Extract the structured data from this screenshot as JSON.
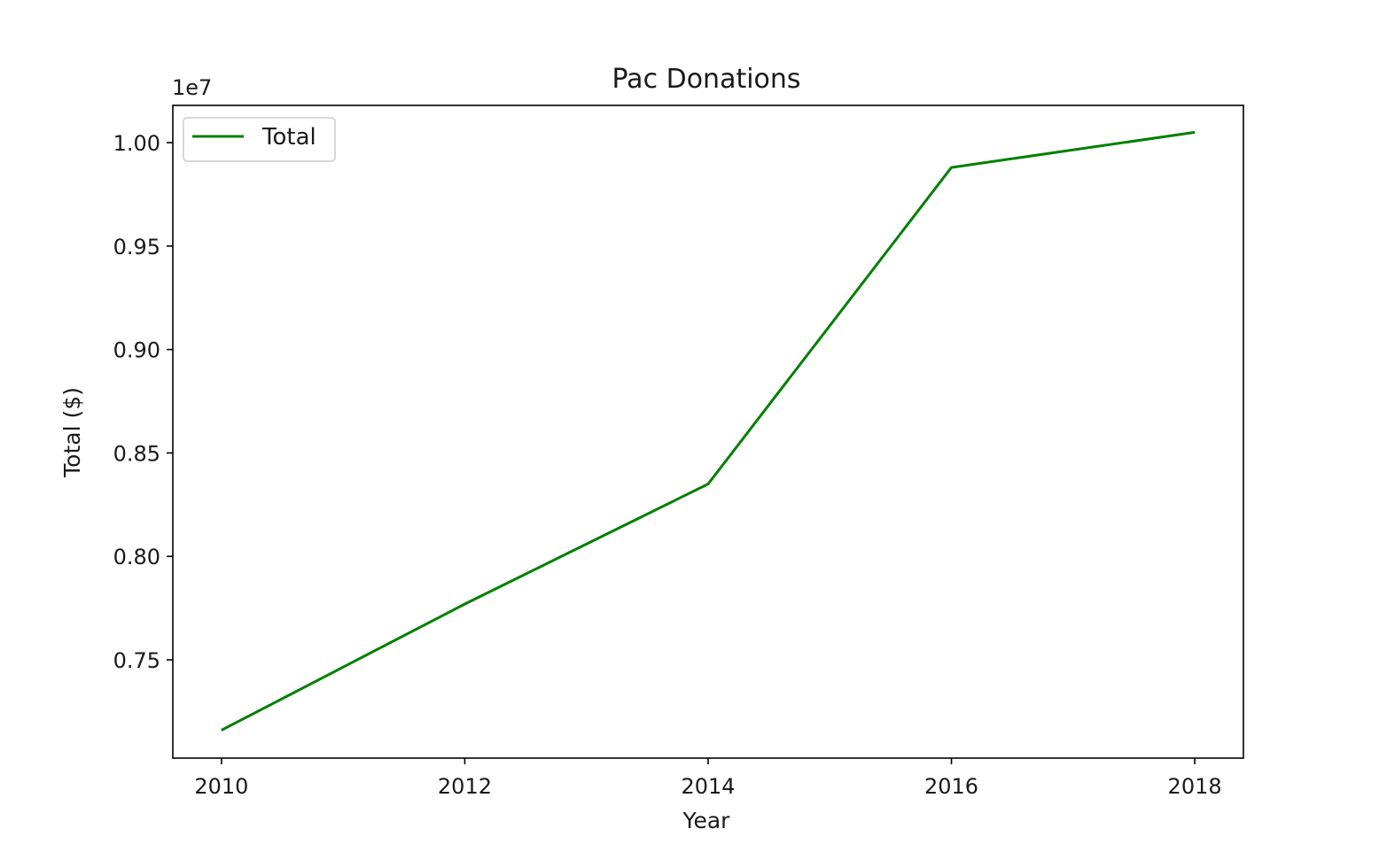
{
  "chart_data": {
    "type": "line",
    "title": "Pac Donations",
    "xlabel": "Year",
    "ylabel": "Total ($)",
    "y_offset_label": "1e7",
    "xlim": [
      2009.6,
      2018.4
    ],
    "ylim": [
      7.025,
      10.18
    ],
    "x_ticks": [
      2010,
      2012,
      2014,
      2016,
      2018
    ],
    "x_tick_labels": [
      "2010",
      "2012",
      "2014",
      "2016",
      "2018"
    ],
    "y_ticks": [
      7.5,
      8.0,
      8.5,
      9.0,
      9.5,
      10.0
    ],
    "y_tick_labels": [
      "0.75",
      "0.80",
      "0.85",
      "0.90",
      "0.95",
      "1.00"
    ],
    "legend_position": "upper-left",
    "grid": false,
    "series": [
      {
        "name": "Total",
        "color": "#008000",
        "x": [
          2010,
          2012,
          2014,
          2016,
          2018
        ],
        "y": [
          7.16,
          7.77,
          8.35,
          9.88,
          10.05
        ]
      }
    ]
  }
}
